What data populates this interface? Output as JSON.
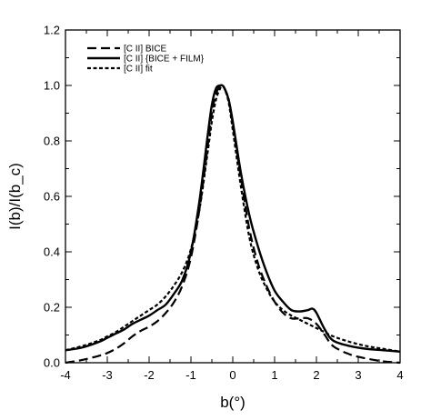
{
  "chart_data": {
    "type": "line",
    "title": "",
    "xlabel": "b(°)",
    "ylabel": "I(b)/I(b_c)",
    "xlim": [
      -4,
      4
    ],
    "ylim": [
      0,
      1.2
    ],
    "x_ticks": [
      -4,
      -3,
      -2,
      -1,
      0,
      1,
      2,
      3,
      4
    ],
    "y_ticks": [
      0.0,
      0.2,
      0.4,
      0.6,
      0.8,
      1.0,
      1.2
    ],
    "x_tick_labels": [
      "-4",
      "-3",
      "-2",
      "-1",
      "0",
      "1",
      "2",
      "3",
      "4"
    ],
    "y_tick_labels": [
      "0.0",
      "0.2",
      "0.4",
      "0.6",
      "0.8",
      "1.0",
      "1.2"
    ],
    "legend_position": "top-left",
    "grid": false,
    "series": [
      {
        "name": "[C II] BICE",
        "style": "dashed",
        "color": "#000000",
        "x": [
          -4.0,
          -3.6,
          -3.2,
          -3.0,
          -2.8,
          -2.6,
          -2.4,
          -2.2,
          -2.0,
          -1.8,
          -1.6,
          -1.4,
          -1.2,
          -1.0,
          -0.8,
          -0.6,
          -0.5,
          -0.4,
          -0.3,
          -0.25,
          -0.2,
          -0.1,
          0.0,
          0.2,
          0.4,
          0.6,
          0.8,
          1.0,
          1.2,
          1.4,
          1.6,
          1.8,
          2.0,
          2.2,
          2.4,
          2.8,
          3.2,
          3.6,
          4.0
        ],
        "y": [
          0.0,
          0.01,
          0.025,
          0.035,
          0.05,
          0.07,
          0.095,
          0.115,
          0.13,
          0.15,
          0.18,
          0.22,
          0.28,
          0.38,
          0.55,
          0.78,
          0.9,
          0.97,
          1.0,
          1.0,
          0.99,
          0.95,
          0.86,
          0.66,
          0.48,
          0.36,
          0.28,
          0.22,
          0.18,
          0.16,
          0.16,
          0.16,
          0.14,
          0.1,
          0.06,
          0.03,
          0.015,
          0.005,
          0.0
        ]
      },
      {
        "name": "[C II] {BICE + FILM}",
        "style": "solid",
        "color": "#000000",
        "x": [
          -4.0,
          -3.6,
          -3.2,
          -3.0,
          -2.8,
          -2.6,
          -2.4,
          -2.2,
          -2.0,
          -1.8,
          -1.6,
          -1.4,
          -1.2,
          -1.0,
          -0.8,
          -0.6,
          -0.5,
          -0.4,
          -0.3,
          -0.25,
          -0.2,
          -0.1,
          0.0,
          0.2,
          0.4,
          0.6,
          0.8,
          1.0,
          1.2,
          1.4,
          1.6,
          1.8,
          1.9,
          2.0,
          2.2,
          2.4,
          2.8,
          3.2,
          3.6,
          4.0
        ],
        "y": [
          0.045,
          0.055,
          0.075,
          0.09,
          0.105,
          0.12,
          0.14,
          0.155,
          0.17,
          0.19,
          0.21,
          0.25,
          0.3,
          0.4,
          0.58,
          0.82,
          0.93,
          0.99,
          1.0,
          1.0,
          0.99,
          0.95,
          0.87,
          0.68,
          0.53,
          0.42,
          0.33,
          0.26,
          0.22,
          0.19,
          0.185,
          0.19,
          0.195,
          0.18,
          0.12,
          0.08,
          0.06,
          0.05,
          0.045,
          0.04
        ]
      },
      {
        "name": "[C II] fit",
        "style": "dotted",
        "color": "#000000",
        "x": [
          -4.0,
          -3.6,
          -3.2,
          -3.0,
          -2.8,
          -2.6,
          -2.4,
          -2.2,
          -2.0,
          -1.8,
          -1.6,
          -1.4,
          -1.2,
          -1.0,
          -0.8,
          -0.6,
          -0.5,
          -0.4,
          -0.3,
          -0.25,
          -0.2,
          -0.1,
          0.0,
          0.2,
          0.4,
          0.6,
          0.8,
          1.0,
          1.2,
          1.4,
          1.6,
          1.8,
          2.0,
          2.2,
          2.4,
          2.8,
          3.2,
          3.6,
          4.0
        ],
        "y": [
          0.045,
          0.06,
          0.08,
          0.095,
          0.11,
          0.13,
          0.15,
          0.17,
          0.19,
          0.21,
          0.24,
          0.28,
          0.33,
          0.41,
          0.55,
          0.76,
          0.87,
          0.95,
          0.99,
          0.995,
          0.99,
          0.94,
          0.84,
          0.63,
          0.45,
          0.34,
          0.27,
          0.22,
          0.19,
          0.17,
          0.155,
          0.14,
          0.125,
          0.11,
          0.095,
          0.075,
          0.06,
          0.05,
          0.04
        ]
      }
    ]
  }
}
